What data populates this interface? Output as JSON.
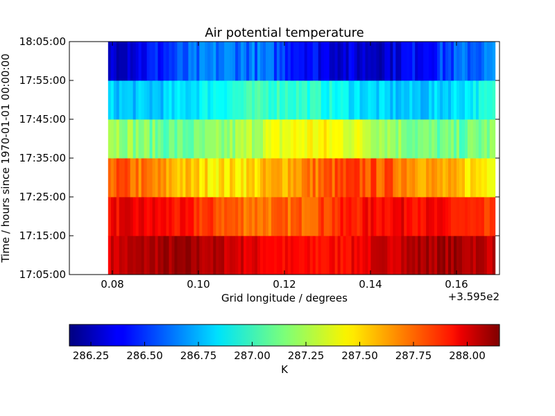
{
  "chart_data": {
    "type": "heatmap",
    "title": "Air potential temperature",
    "xlabel": "Grid longitude / degrees",
    "ylabel": "Time / hours since 1970-01-01 00:00:00",
    "x_offset_label": "+3.595e2",
    "xlim": [
      0.07,
      0.17
    ],
    "x_data_range": [
      0.079,
      0.169
    ],
    "x_ticks": [
      0.08,
      0.1,
      0.12,
      0.14,
      0.16
    ],
    "x_tick_labels": [
      "0.08",
      "0.10",
      "0.12",
      "0.14",
      "0.16"
    ],
    "y_tick_labels": [
      "17:05:00",
      "17:15:00",
      "17:25:00",
      "17:35:00",
      "17:45:00",
      "17:55:00",
      "18:05:00"
    ],
    "rows": [
      {
        "time": "17:05:00",
        "range": [
          287.8,
          288.15
        ]
      },
      {
        "time": "17:15:00",
        "range": [
          287.6,
          288.0
        ]
      },
      {
        "time": "17:25:00",
        "range": [
          287.35,
          287.85
        ]
      },
      {
        "time": "17:35:00",
        "range": [
          287.0,
          287.5
        ]
      },
      {
        "time": "17:45:00",
        "range": [
          286.7,
          287.1
        ]
      },
      {
        "time": "17:55:00",
        "range": [
          286.2,
          286.75
        ]
      }
    ],
    "columns": 140,
    "colormap": "jet",
    "colorbar": {
      "label": "K",
      "vmin": 286.15,
      "vmax": 288.15,
      "ticks": [
        286.25,
        286.5,
        286.75,
        287.0,
        287.25,
        287.5,
        287.75,
        288.0
      ],
      "tick_labels": [
        "286.25",
        "286.50",
        "286.75",
        "287.00",
        "287.25",
        "287.50",
        "287.75",
        "288.00"
      ]
    },
    "grid": false
  }
}
